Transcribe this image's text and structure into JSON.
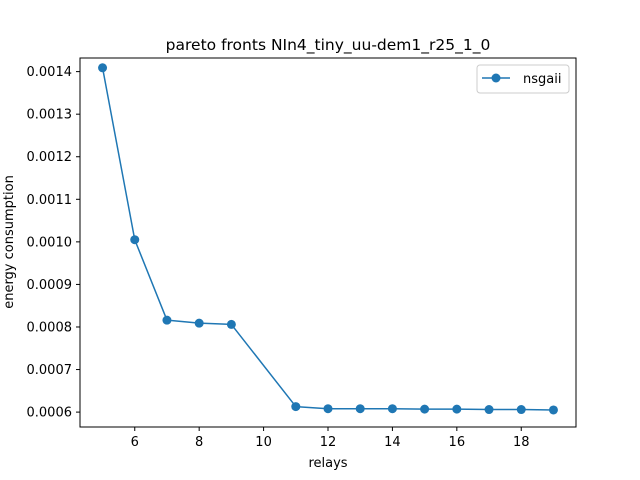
{
  "chart_data": {
    "type": "line",
    "title": "pareto fronts NIn4_tiny_uu-dem1_r25_1_0",
    "xlabel": "relays",
    "ylabel": "energy consumption",
    "xlim": [
      4.3,
      19.7
    ],
    "ylim": [
      0.000565,
      0.001432
    ],
    "x_ticks": [
      6,
      8,
      10,
      12,
      14,
      16,
      18
    ],
    "x_tick_labels": [
      "6",
      "8",
      "10",
      "12",
      "14",
      "16",
      "18"
    ],
    "y_ticks": [
      0.0006,
      0.0007,
      0.0008,
      0.0009,
      0.001,
      0.0011,
      0.0012,
      0.0013,
      0.0014
    ],
    "y_tick_labels": [
      "0.0006",
      "0.0007",
      "0.0008",
      "0.0009",
      "0.0010",
      "0.0011",
      "0.0012",
      "0.0013",
      "0.0014"
    ],
    "grid": false,
    "legend_position": "top-right",
    "series": [
      {
        "name": "nsgaii",
        "color": "#1f77b4",
        "marker": "circle",
        "x": [
          5,
          6,
          7,
          8,
          9,
          11,
          12,
          13,
          14,
          15,
          16,
          17,
          18,
          19
        ],
        "y": [
          0.001409,
          0.001005,
          0.000816,
          0.000809,
          0.000806,
          0.000613,
          0.000608,
          0.000608,
          0.000608,
          0.000607,
          0.000607,
          0.000606,
          0.000606,
          0.000605
        ]
      }
    ]
  }
}
